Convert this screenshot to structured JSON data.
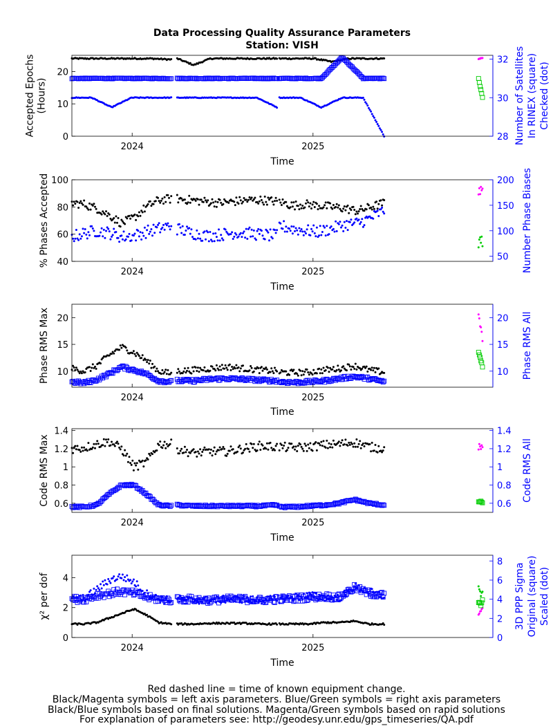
{
  "title": "Data Processing Quality Assurance Parameters",
  "subtitle": "Station: VISH",
  "footer": [
    "Red dashed line = time of known equipment change.",
    "Black/Magenta symbols = left axis parameters. Blue/Green symbols = right axis parameters",
    "Black/Blue symbols based on final solutions.  Magenta/Green symbols based on rapid solutions",
    "For explanation of parameters see: http://geodesy.unr.edu/gps_timeseries/QA.pdf"
  ],
  "colors": {
    "left": "#000000",
    "right": "#0000ff",
    "rapid_left": "#ff00ff",
    "rapid_right": "#00cc00",
    "axis_right": "#0000ff"
  },
  "chart_data": [
    {
      "type": "scatter",
      "xlabel": "Time",
      "x_ticks": [
        "2024",
        "2025"
      ],
      "xlim": [
        "2023-09-01",
        "2025-12-31"
      ],
      "ylabel_left": [
        "Accepted Epochs",
        "(Hours)"
      ],
      "ylim_left": [
        0,
        25
      ],
      "yticks_left": [
        0,
        10,
        20
      ],
      "ylabel_right": [
        "Number of Satellites",
        "In RINEX (square)",
        "Checked (dot)"
      ],
      "ylim_right": [
        28,
        32.2
      ],
      "yticks_right": [
        28,
        30,
        32
      ],
      "series": [
        {
          "side": "left",
          "marker": "dot",
          "segments": [
            {
              "from": "2023-09-01",
              "to": "2024-03-20",
              "values": [
                24,
                24,
                24,
                24,
                24,
                23.7
              ]
            },
            {
              "from": "2024-04-01",
              "to": "2024-10-20",
              "values": [
                24,
                22,
                24,
                24,
                24,
                24,
                24
              ]
            },
            {
              "from": "2024-10-25",
              "to": "2025-05-25",
              "values": [
                24,
                24,
                24,
                23,
                24,
                24,
                24
              ]
            }
          ]
        },
        {
          "side": "right",
          "marker": "square",
          "segments": [
            {
              "from": "2023-09-01",
              "to": "2024-03-20",
              "values": [
                31.0,
                31.0,
                31.0,
                31.0,
                31.0,
                31.0
              ]
            },
            {
              "from": "2024-04-01",
              "to": "2024-10-20",
              "values": [
                31.0,
                31.0,
                31.0,
                31.0,
                31.0,
                31.0
              ]
            },
            {
              "from": "2024-10-25",
              "to": "2025-05-25",
              "values": [
                31.0,
                31.0,
                31.0,
                32.1,
                31.0,
                31.0
              ]
            }
          ]
        },
        {
          "side": "right",
          "marker": "dot",
          "segments": [
            {
              "from": "2023-09-01",
              "to": "2024-03-20",
              "values": [
                30.0,
                30.0,
                29.5,
                30.0,
                30.0,
                30.0
              ]
            },
            {
              "from": "2024-04-01",
              "to": "2024-10-20",
              "values": [
                30.0,
                30.0,
                30.0,
                30.0,
                30.0,
                29.5
              ]
            },
            {
              "from": "2024-10-25",
              "to": "2025-05-25",
              "values": [
                30.0,
                30.0,
                29.5,
                30.0,
                30.0,
                28.0
              ]
            }
          ]
        },
        {
          "side": "left",
          "marker": "dot",
          "rapid": true,
          "segments": [
            {
              "from": "2025-12-02",
              "to": "2025-12-10",
              "values": [
                24,
                24
              ]
            }
          ]
        },
        {
          "side": "right",
          "marker": "square",
          "rapid": true,
          "segments": [
            {
              "from": "2025-12-02",
              "to": "2025-12-10",
              "values": [
                31.0,
                30.0
              ]
            }
          ]
        }
      ]
    },
    {
      "type": "scatter",
      "xlabel": "Time",
      "x_ticks": [
        "2024",
        "2025"
      ],
      "xlim": [
        "2023-09-01",
        "2025-12-31"
      ],
      "ylabel_left": [
        "% Phases Accepted"
      ],
      "ylim_left": [
        40,
        100
      ],
      "yticks_left": [
        40,
        60,
        80,
        100
      ],
      "ylabel_right": [
        "Number Phase Biases"
      ],
      "ylim_right": [
        40,
        200
      ],
      "yticks_right": [
        50,
        100,
        150,
        200
      ],
      "series": [
        {
          "side": "left",
          "marker": "dot",
          "segments": [
            {
              "from": "2023-09-01",
              "to": "2024-03-20",
              "values": [
                83,
                82,
                79,
                74,
                68,
                72,
                80,
                85,
                86
              ]
            },
            {
              "from": "2024-04-01",
              "to": "2024-10-20",
              "values": [
                86,
                85,
                84,
                83,
                84,
                85,
                85,
                84
              ]
            },
            {
              "from": "2024-10-25",
              "to": "2025-05-25",
              "values": [
                84,
                81,
                82,
                81,
                80,
                79,
                77,
                80,
                83
              ]
            }
          ]
        },
        {
          "side": "right",
          "marker": "dot",
          "segments": [
            {
              "from": "2023-09-01",
              "to": "2024-03-20",
              "values": [
                88,
                95,
                100,
                96,
                88,
                90,
                98,
                104,
                110
              ]
            },
            {
              "from": "2024-04-01",
              "to": "2024-10-20",
              "values": [
                104,
                96,
                90,
                92,
                96,
                95,
                92,
                90
              ]
            },
            {
              "from": "2024-10-25",
              "to": "2025-05-25",
              "values": [
                110,
                104,
                100,
                98,
                104,
                112,
                115,
                125,
                140
              ]
            }
          ]
        },
        {
          "side": "left",
          "marker": "dot",
          "rapid": true,
          "segments": [
            {
              "from": "2025-12-02",
              "to": "2025-12-10",
              "values": [
                91,
                92
              ]
            }
          ]
        },
        {
          "side": "right",
          "marker": "dot",
          "rapid": true,
          "segments": [
            {
              "from": "2025-12-02",
              "to": "2025-12-10",
              "values": [
                79,
                80
              ]
            }
          ]
        }
      ]
    },
    {
      "type": "scatter",
      "xlabel": "Time",
      "x_ticks": [
        "2024",
        "2025"
      ],
      "xlim": [
        "2023-09-01",
        "2025-12-31"
      ],
      "ylabel_left": [
        "Phase RMS Max"
      ],
      "ylim_left": [
        7,
        22.5
      ],
      "yticks_left": [
        10,
        15,
        20
      ],
      "ylabel_right": [
        "Phase RMS All"
      ],
      "ylim_right": [
        7,
        22.5
      ],
      "yticks_right": [
        10,
        15,
        20
      ],
      "series": [
        {
          "side": "left",
          "marker": "dot",
          "segments": [
            {
              "from": "2023-09-01",
              "to": "2024-03-20",
              "values": [
                10.5,
                10,
                11,
                13,
                14.5,
                13.5,
                12,
                10,
                9.5
              ]
            },
            {
              "from": "2024-04-01",
              "to": "2024-10-20",
              "values": [
                10,
                10.2,
                10.5,
                10.8,
                10.5,
                10.2,
                10
              ]
            },
            {
              "from": "2024-10-25",
              "to": "2025-05-25",
              "values": [
                9.8,
                9.7,
                9.8,
                10.2,
                10.5,
                11,
                10.2,
                9.8
              ]
            }
          ]
        },
        {
          "side": "right",
          "marker": "square",
          "segments": [
            {
              "from": "2023-09-01",
              "to": "2024-03-20",
              "values": [
                8,
                7.8,
                8.4,
                9.5,
                10.8,
                10.2,
                9.5,
                8.2,
                8
              ]
            },
            {
              "from": "2024-04-01",
              "to": "2024-10-20",
              "values": [
                8.2,
                8.2,
                8.5,
                8.6,
                8.5,
                8.3,
                8.2
              ]
            },
            {
              "from": "2024-10-25",
              "to": "2025-05-25",
              "values": [
                8,
                7.9,
                8,
                8.2,
                8.6,
                9,
                8.6,
                8
              ]
            }
          ]
        },
        {
          "side": "left",
          "marker": "dot",
          "rapid": true,
          "segments": [
            {
              "from": "2025-12-02",
              "to": "2025-12-10",
              "values": [
                20.5,
                16
              ]
            }
          ]
        },
        {
          "side": "right",
          "marker": "square",
          "rapid": true,
          "segments": [
            {
              "from": "2025-12-02",
              "to": "2025-12-10",
              "values": [
                13.5,
                11
              ]
            }
          ]
        }
      ]
    },
    {
      "type": "scatter",
      "xlabel": "Time",
      "x_ticks": [
        "2024",
        "2025"
      ],
      "xlim": [
        "2023-09-01",
        "2025-12-31"
      ],
      "ylabel_left": [
        "Code RMS Max"
      ],
      "ylim_left": [
        0.5,
        1.42
      ],
      "yticks_left": [
        0.6,
        0.8,
        1.0,
        1.2,
        1.4
      ],
      "ytick_labels_left": [
        "0.6",
        "0.8",
        "1",
        "1.2",
        "1.4"
      ],
      "ylabel_right": [
        "Code RMS All"
      ],
      "ylim_right": [
        0.5,
        1.42
      ],
      "yticks_right": [
        0.6,
        0.8,
        1.0,
        1.2,
        1.4
      ],
      "ytick_labels_right": [
        "0.6",
        "0.8",
        "1",
        "1.2",
        "1.4"
      ],
      "series": [
        {
          "side": "left",
          "marker": "dot",
          "segments": [
            {
              "from": "2023-09-01",
              "to": "2024-03-20",
              "values": [
                1.2,
                1.21,
                1.25,
                1.28,
                1.2,
                1.0,
                1.05,
                1.25,
                1.25
              ]
            },
            {
              "from": "2024-04-01",
              "to": "2024-10-20",
              "values": [
                1.2,
                1.15,
                1.17,
                1.17,
                1.2,
                1.23,
                1.22
              ]
            },
            {
              "from": "2024-10-25",
              "to": "2025-05-25",
              "values": [
                1.22,
                1.21,
                1.22,
                1.24,
                1.25,
                1.27,
                1.22,
                1.2
              ]
            }
          ]
        },
        {
          "side": "right",
          "marker": "square",
          "segments": [
            {
              "from": "2023-09-01",
              "to": "2024-03-20",
              "values": [
                0.56,
                0.56,
                0.58,
                0.7,
                0.8,
                0.8,
                0.7,
                0.58,
                0.57
              ]
            },
            {
              "from": "2024-04-01",
              "to": "2024-10-20",
              "values": [
                0.58,
                0.57,
                0.57,
                0.57,
                0.57,
                0.57,
                0.58
              ]
            },
            {
              "from": "2024-10-25",
              "to": "2025-05-25",
              "values": [
                0.56,
                0.56,
                0.57,
                0.58,
                0.6,
                0.64,
                0.6,
                0.58
              ]
            }
          ]
        },
        {
          "side": "left",
          "marker": "dot",
          "rapid": true,
          "segments": [
            {
              "from": "2025-12-02",
              "to": "2025-12-10",
              "values": [
                1.23,
                1.18
              ]
            }
          ]
        },
        {
          "side": "right",
          "marker": "square",
          "rapid": true,
          "segments": [
            {
              "from": "2025-12-02",
              "to": "2025-12-10",
              "values": [
                0.62,
                0.61
              ]
            }
          ]
        }
      ]
    },
    {
      "type": "scatter",
      "xlabel": "Time",
      "x_ticks": [
        "2024",
        "2025"
      ],
      "xlim": [
        "2023-09-01",
        "2025-12-31"
      ],
      "ylabel_left": [
        "χ² per dof"
      ],
      "ylim_left": [
        0,
        5.5
      ],
      "yticks_left": [
        0,
        2,
        4
      ],
      "ylabel_right": [
        "3D PPP Sigma",
        "Original (square)",
        "Scaled (dot)"
      ],
      "ylim_right": [
        0,
        8.6
      ],
      "yticks_right": [
        0,
        2,
        4,
        6,
        8
      ],
      "series": [
        {
          "side": "left",
          "marker": "dot",
          "segments": [
            {
              "from": "2023-09-01",
              "to": "2024-03-20",
              "values": [
                0.9,
                0.9,
                1.0,
                1.3,
                1.6,
                1.9,
                1.5,
                1.0,
                0.9
              ]
            },
            {
              "from": "2024-04-01",
              "to": "2024-10-20",
              "values": [
                0.9,
                0.9,
                0.95,
                0.95,
                0.95,
                0.9,
                0.9
              ]
            },
            {
              "from": "2024-10-25",
              "to": "2025-05-25",
              "values": [
                0.9,
                0.9,
                0.9,
                1.0,
                1.0,
                1.1,
                0.9,
                0.9
              ]
            }
          ]
        },
        {
          "side": "right",
          "marker": "square",
          "segments": [
            {
              "from": "2023-09-01",
              "to": "2024-03-20",
              "values": [
                4.0,
                4.0,
                4.4,
                4.6,
                4.8,
                4.6,
                4.2,
                4.0,
                3.9
              ]
            },
            {
              "from": "2024-04-01",
              "to": "2024-10-20",
              "values": [
                4.0,
                4.0,
                3.9,
                4.0,
                4.0,
                3.9,
                4.0
              ]
            },
            {
              "from": "2024-10-25",
              "to": "2025-05-25",
              "values": [
                4.0,
                4.1,
                4.2,
                4.3,
                4.2,
                5.2,
                4.6,
                4.4
              ]
            }
          ]
        },
        {
          "side": "right",
          "marker": "dot",
          "segments": [
            {
              "from": "2023-09-01",
              "to": "2024-03-20",
              "values": [
                4.0,
                4.1,
                5.0,
                6.0,
                6.4,
                5.8,
                4.6,
                4.0,
                3.9
              ]
            },
            {
              "from": "2024-04-01",
              "to": "2024-10-20",
              "values": [
                4.0,
                3.9,
                3.9,
                4.0,
                4.0,
                3.9,
                4.0
              ]
            },
            {
              "from": "2024-10-25",
              "to": "2025-05-25",
              "values": [
                4.0,
                4.2,
                4.4,
                4.2,
                4.1,
                5.3,
                4.8,
                4.3
              ]
            }
          ]
        },
        {
          "side": "left",
          "marker": "dot",
          "rapid": true,
          "segments": [
            {
              "from": "2025-12-02",
              "to": "2025-12-10",
              "values": [
                1.5,
                2.0
              ]
            }
          ]
        },
        {
          "side": "right",
          "marker": "square",
          "rapid": true,
          "segments": [
            {
              "from": "2025-12-02",
              "to": "2025-12-10",
              "values": [
                3.5,
                3.6
              ]
            }
          ]
        },
        {
          "side": "right",
          "marker": "dot",
          "rapid": true,
          "segments": [
            {
              "from": "2025-12-02",
              "to": "2025-12-10",
              "values": [
                5.0,
                4.4
              ]
            }
          ]
        }
      ]
    }
  ]
}
